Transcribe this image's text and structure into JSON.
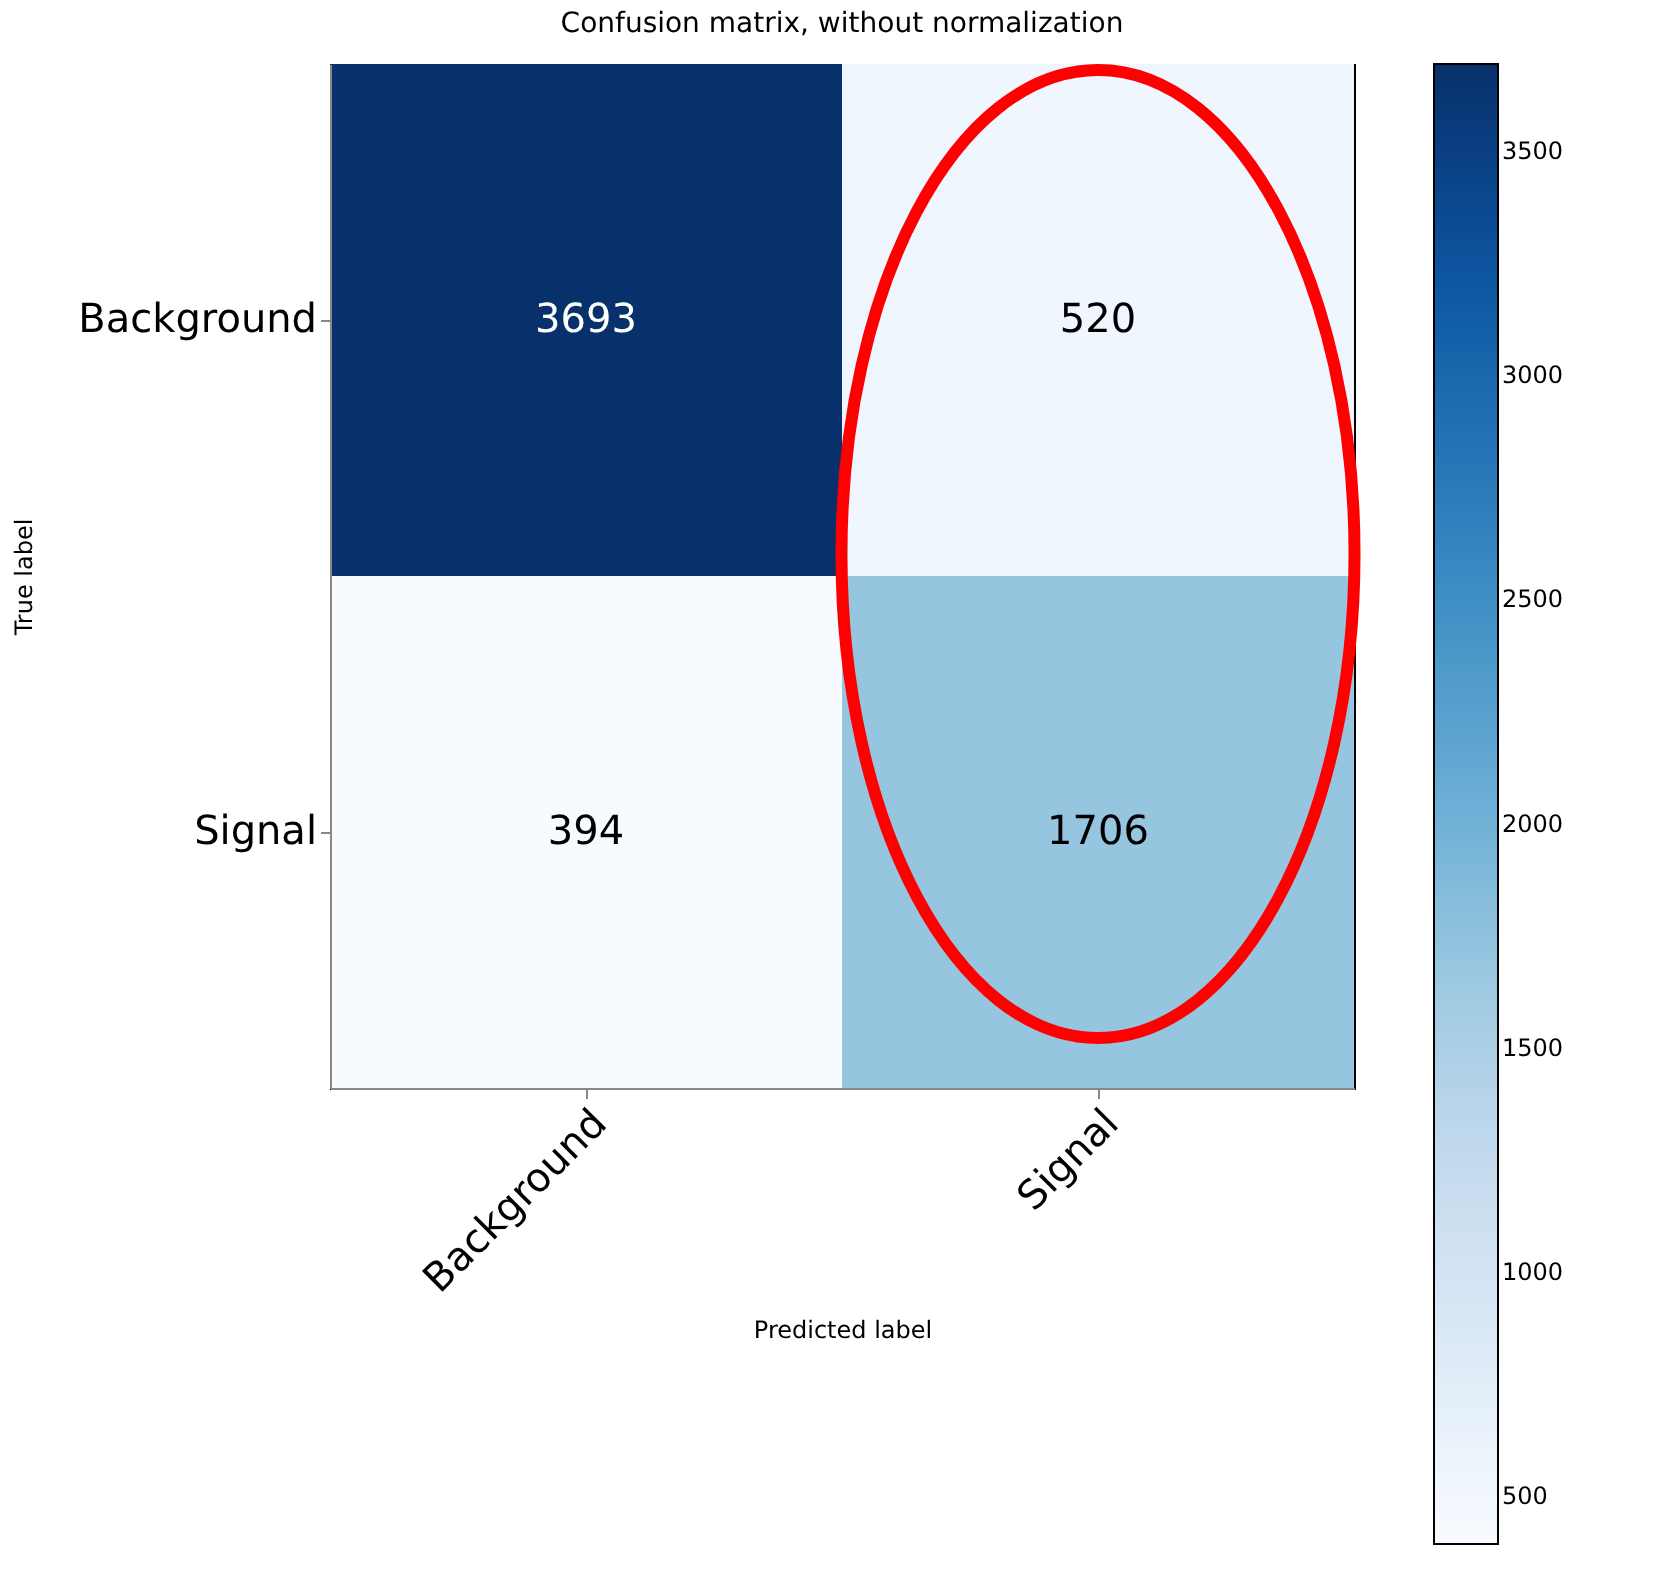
{
  "chart_data": {
    "type": "heatmap",
    "title": "Confusion matrix, without normalization",
    "xlabel": "Predicted label",
    "ylabel": "True label",
    "categories": [
      "Background",
      "Signal"
    ],
    "y_categories": [
      "Background",
      "Signal"
    ],
    "cells": [
      [
        3693,
        520
      ],
      [
        394,
        1706
      ]
    ],
    "data_labels": true,
    "clim": [
      394,
      3693
    ],
    "cticks": [
      500,
      1000,
      1500,
      2000,
      2500,
      3000,
      3500
    ],
    "grid": false
  }
}
